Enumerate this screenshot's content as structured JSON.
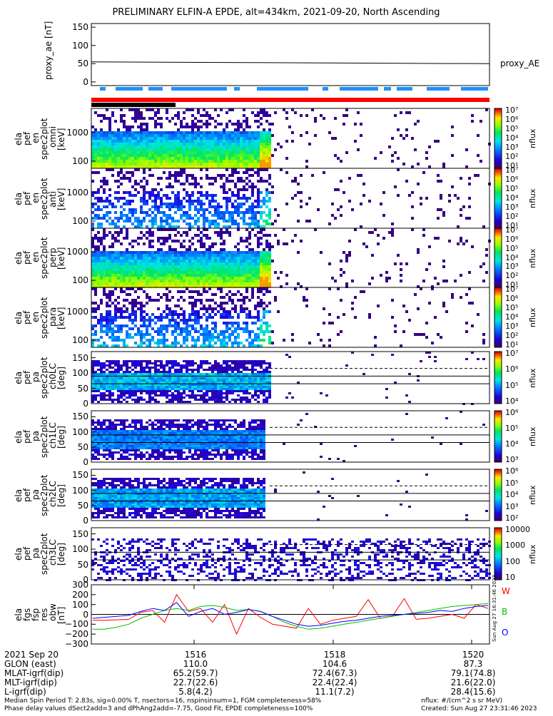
{
  "title": "PRELIMINARY ELFIN-A EPDE, alt=434km, 2021-09-20, North Ascending",
  "colors": {
    "bar_red": "#ff0000",
    "bar_blue": "#1e90ff",
    "bar_black": "#000000",
    "trace_W": "#ff0000",
    "trace_B": "#00c000",
    "trace_O": "#0000ff"
  },
  "chart_data": [
    {
      "type": "line",
      "panel": "proxy_ae",
      "ylabel": "proxy_ae [nT]",
      "ylim": [
        -10,
        160
      ],
      "yticks": [
        "150",
        "100",
        "50",
        "0"
      ],
      "legend": "proxy_AE",
      "series": [
        {
          "name": "proxy_AE",
          "x_frac": [
            0,
            1
          ],
          "values": [
            55,
            50
          ]
        }
      ]
    },
    {
      "type": "heatmap",
      "panel": "ela pef en spec2plot omni",
      "ylabel": [
        "ela",
        "pef",
        "en",
        "spec2plot",
        "omni",
        "[keV]"
      ],
      "yticks": [
        "1000",
        "100"
      ],
      "scale": "log",
      "colorbar": {
        "label": "nflux",
        "ticks": [
          "10⁷",
          "10⁶",
          "10⁵",
          "10⁴",
          "10³",
          "10²",
          "10¹"
        ]
      }
    },
    {
      "type": "heatmap",
      "panel": "ela pef en spec2plot anti",
      "ylabel": [
        "ela",
        "pef",
        "en",
        "spec2plot",
        "anti",
        "[keV]"
      ],
      "yticks": [
        "1000",
        "100"
      ],
      "scale": "log",
      "colorbar": {
        "label": "nflux",
        "ticks": [
          "10⁷",
          "10⁶",
          "10⁵",
          "10⁴",
          "10³",
          "10²",
          "10¹"
        ]
      }
    },
    {
      "type": "heatmap",
      "panel": "ela pef en spec2plot perp",
      "ylabel": [
        "ela",
        "pef",
        "en",
        "spec2plot",
        "perp",
        "[keV]"
      ],
      "yticks": [
        "1000",
        "100"
      ],
      "scale": "log",
      "colorbar": {
        "label": "nflux",
        "ticks": [
          "10⁷",
          "10⁶",
          "10⁵",
          "10⁴",
          "10³",
          "10²",
          "10¹"
        ]
      }
    },
    {
      "type": "heatmap",
      "panel": "ela pef en spec2plot para",
      "ylabel": [
        "ela",
        "pef",
        "en",
        "spec2plot",
        "para",
        "[keV]"
      ],
      "yticks": [
        "1000",
        "100"
      ],
      "scale": "log",
      "colorbar": {
        "label": "nflux",
        "ticks": [
          "10⁷",
          "10⁶",
          "10⁵",
          "10⁴",
          "10³",
          "10²",
          "10¹"
        ]
      }
    },
    {
      "type": "heatmap",
      "panel": "ela pef pa spec2plot ch0LC",
      "ylabel": [
        "ela",
        "pef",
        "pa",
        "spec2plot",
        "ch0LC",
        "[deg]"
      ],
      "yticks": [
        "150",
        "100",
        "50",
        "0"
      ],
      "colorbar": {
        "label": "nflux",
        "ticks": [
          "10⁷",
          "10⁶",
          "10⁵",
          "10⁴"
        ]
      }
    },
    {
      "type": "heatmap",
      "panel": "ela pef pa spec2plot ch1LC",
      "ylabel": [
        "ela",
        "pef",
        "pa",
        "spec2plot",
        "ch1LC",
        "[deg]"
      ],
      "yticks": [
        "150",
        "100",
        "50",
        "0"
      ],
      "colorbar": {
        "label": "nflux",
        "ticks": [
          "10⁶",
          "10⁵",
          "10⁴",
          "10³"
        ]
      }
    },
    {
      "type": "heatmap",
      "panel": "ela pef pa spec2plot ch2LC",
      "ylabel": [
        "ela",
        "pef",
        "pa",
        "spec2plot",
        "ch2LC",
        "[deg]"
      ],
      "yticks": [
        "150",
        "100",
        "50",
        "0"
      ],
      "colorbar": {
        "label": "nflux",
        "ticks": [
          "10⁶",
          "10⁵",
          "10⁴",
          "10³",
          "10²"
        ]
      }
    },
    {
      "type": "heatmap",
      "panel": "ela pef pa spec2plot ch3LC",
      "ylabel": [
        "ela",
        "pef",
        "pa",
        "spec2plot",
        "ch3LC",
        "[deg]"
      ],
      "yticks": [
        "150",
        "100",
        "50",
        "0"
      ],
      "colorbar": {
        "label": "nflux",
        "ticks": [
          "10000",
          "1000",
          "100",
          "10"
        ]
      }
    },
    {
      "type": "line",
      "panel": "ela fgs fsp res obw",
      "ylabel": [
        "ela",
        "fgs",
        "fsp",
        "res",
        "obw",
        "[nT]"
      ],
      "yticks": [
        "300",
        "200",
        "100",
        "0",
        "−100",
        "−200",
        "−300"
      ],
      "ylim": [
        -300,
        300
      ],
      "series": [
        {
          "name": "W",
          "values": [
            -60,
            -60,
            -55,
            -50,
            20,
            40,
            -80,
            200,
            30,
            60,
            -80,
            100,
            -200,
            60,
            -30,
            -100,
            -120,
            -140,
            60,
            -100,
            -60,
            -40,
            -20,
            150,
            -40,
            -20,
            160,
            -50,
            -40,
            -20,
            0,
            -40,
            100,
            60
          ]
        },
        {
          "name": "B",
          "values": [
            -150,
            -150,
            -130,
            -100,
            -40,
            0,
            40,
            60,
            40,
            80,
            90,
            70,
            40,
            50,
            30,
            -20,
            -80,
            -120,
            -150,
            -140,
            -120,
            -100,
            -80,
            -60,
            -40,
            -20,
            0,
            20,
            40,
            60,
            80,
            90,
            100,
            110
          ]
        },
        {
          "name": "O",
          "values": [
            -40,
            -30,
            -20,
            -10,
            30,
            60,
            40,
            120,
            -20,
            30,
            60,
            0,
            20,
            50,
            30,
            -20,
            -60,
            -100,
            -120,
            -110,
            -90,
            -70,
            -60,
            -40,
            -20,
            -10,
            0,
            10,
            20,
            40,
            30,
            60,
            80,
            90
          ]
        }
      ],
      "timestamp": "Sun Aug 27 16:31:46 2023"
    }
  ],
  "xaxis": {
    "rows": [
      {
        "label": "2021 Sep 20",
        "values": [
          "1516",
          "1518",
          "1520"
        ]
      },
      {
        "label": "GLON (east)",
        "values": [
          "110.0",
          "104.6",
          "87.3"
        ]
      },
      {
        "label": "MLAT-igrf(dip)",
        "values": [
          "65.2(59.7)",
          "72.4(67.3)",
          "79.1(74.8)"
        ]
      },
      {
        "label": "MLT-igrf(dip)",
        "values": [
          "22.7(22.6)",
          "22.4(22.4)",
          "21.6(22.0)"
        ]
      },
      {
        "label": "L-igrf(dip)",
        "values": [
          "5.8(4.2)",
          "11.1(7.2)",
          "28.4(15.6)"
        ]
      }
    ]
  },
  "footer": {
    "line1": "Median Spin Period T: 2.83s, sig=0.00% T, nsectors=16, nspinsinsum=1, FGM completeness=58%",
    "line2": "Phase delay values dSect2add=3 and dPhAng2add=-7.75, Good Fit, EPDE completeness=100%",
    "right1": "nflux: #/(cm^2 s sr MeV)",
    "right2": "Created: Sun Aug 27 23:31:46 2023"
  }
}
